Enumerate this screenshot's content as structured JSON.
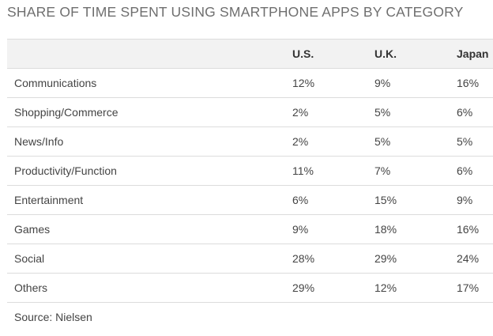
{
  "chart_data": {
    "type": "table",
    "title": "SHARE OF TIME SPENT USING SMARTPHONE APPS BY CATEGORY",
    "columns": [
      "",
      "U.S.",
      "U.K.",
      "Japan"
    ],
    "rows": [
      [
        "Communications",
        "12%",
        "9%",
        "16%"
      ],
      [
        "Shopping/Commerce",
        "2%",
        "5%",
        "6%"
      ],
      [
        "News/Info",
        "2%",
        "5%",
        "5%"
      ],
      [
        "Productivity/Function",
        "11%",
        "7%",
        "6%"
      ],
      [
        "Entertainment",
        "6%",
        "15%",
        "9%"
      ],
      [
        "Games",
        "9%",
        "18%",
        "16%"
      ],
      [
        "Social",
        "28%",
        "29%",
        "24%"
      ],
      [
        "Others",
        "29%",
        "12%",
        "17%"
      ]
    ],
    "categories": [
      "Communications",
      "Shopping/Commerce",
      "News/Info",
      "Productivity/Function",
      "Entertainment",
      "Games",
      "Social",
      "Others"
    ],
    "series": [
      {
        "name": "U.S.",
        "values": [
          12,
          2,
          2,
          11,
          6,
          9,
          28,
          29
        ]
      },
      {
        "name": "U.K.",
        "values": [
          9,
          5,
          5,
          7,
          15,
          18,
          29,
          12
        ]
      },
      {
        "name": "Japan",
        "values": [
          16,
          6,
          5,
          6,
          9,
          16,
          24,
          17
        ]
      }
    ],
    "source": "Source: Nielsen"
  },
  "colors": {
    "header_background": "#f2f2f2",
    "row_divider": "#dcdcdc",
    "title_text": "#6f6f6f",
    "body_text": "#444444"
  }
}
